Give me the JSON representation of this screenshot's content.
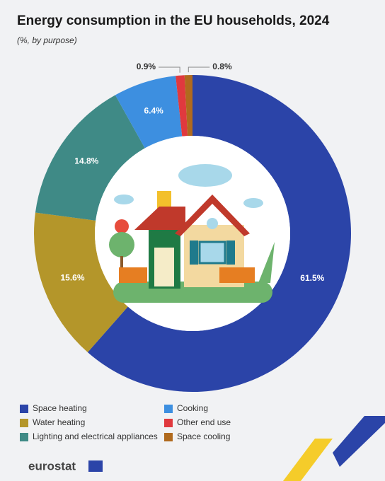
{
  "chart_data": {
    "type": "donut",
    "title": "Energy consumption in the EU households, 2024",
    "subtitle": "(%, by purpose)",
    "series": [
      {
        "name": "Space heating",
        "color": "#2b44a8",
        "values": [
          61.5
        ],
        "value_labels": [
          "61.5%"
        ]
      },
      {
        "name": "Water heating",
        "color": "#b4962a",
        "values": [
          15.6
        ],
        "value_labels": [
          "15.6%"
        ]
      },
      {
        "name": "Lighting and electrical appliances",
        "color": "#3f8a86",
        "values": [
          14.8
        ],
        "value_labels": [
          "14.8%"
        ]
      },
      {
        "name": "Cooking",
        "color": "#3d8fe0",
        "values": [
          6.4
        ],
        "value_labels": [
          "6.4%"
        ]
      },
      {
        "name": "Other end use",
        "color": "#e0393e",
        "values": [
          0.9
        ],
        "value_labels": [
          "0.9%"
        ]
      },
      {
        "name": "Space cooling",
        "color": "#b06a1e",
        "values": [
          0.8
        ],
        "value_labels": [
          "0.8%"
        ]
      }
    ],
    "logo": "eurostat"
  }
}
